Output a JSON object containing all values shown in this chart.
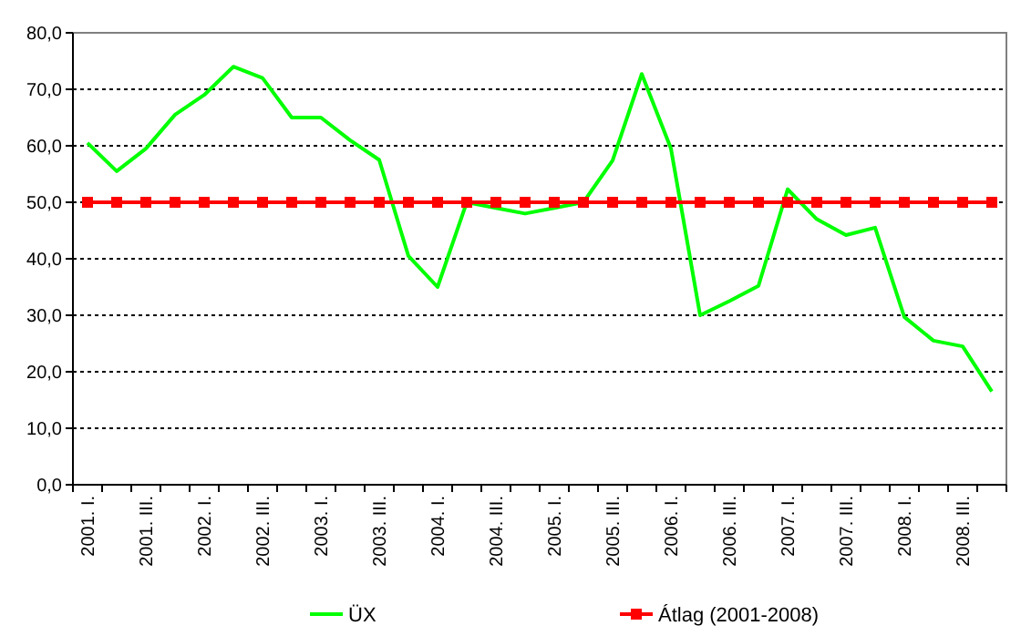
{
  "chart_data": {
    "type": "line",
    "categories": [
      "2001. I.",
      null,
      "2001. III.",
      null,
      "2002. I.",
      null,
      "2002. III.",
      null,
      "2003. I.",
      null,
      "2003. III.",
      null,
      "2004. I.",
      null,
      "2004. III.",
      null,
      "2005. I.",
      null,
      "2005. III.",
      null,
      "2006. I.",
      null,
      "2006. III.",
      null,
      "2007. I.",
      null,
      "2007. III.",
      null,
      "2008. I.",
      null,
      "2008. III.",
      null
    ],
    "series": [
      {
        "name": "ÜX",
        "color": "#00ff00",
        "marker": "none",
        "values": [
          60.5,
          55.5,
          59.5,
          65.5,
          69,
          74,
          72,
          65,
          65,
          61,
          57.5,
          40.5,
          35,
          50,
          49,
          48,
          49,
          50,
          57.4,
          72.7,
          59.5,
          30,
          32.5,
          35.2,
          52.3,
          47,
          44.2,
          45.5,
          29.7,
          25.5,
          24.5,
          16.5
        ]
      },
      {
        "name": "Átlag (2001-2008)",
        "color": "#ff0000",
        "marker": "square",
        "values": [
          50,
          50,
          50,
          50,
          50,
          50,
          50,
          50,
          50,
          50,
          50,
          50,
          50,
          50,
          50,
          50,
          50,
          50,
          50,
          50,
          50,
          50,
          50,
          50,
          50,
          50,
          50,
          50,
          50,
          50,
          50,
          50
        ]
      }
    ],
    "ylim": [
      0,
      80
    ],
    "yticks": [
      {
        "value": 0,
        "label": "0,0"
      },
      {
        "value": 10,
        "label": "10,0"
      },
      {
        "value": 20,
        "label": "20,0"
      },
      {
        "value": 30,
        "label": "30,0"
      },
      {
        "value": 40,
        "label": "40,0"
      },
      {
        "value": 50,
        "label": "50,0"
      },
      {
        "value": 60,
        "label": "60,0"
      },
      {
        "value": 70,
        "label": "70,0"
      },
      {
        "value": 80,
        "label": "80,0"
      }
    ],
    "grid": "y",
    "legend": "bottom"
  }
}
